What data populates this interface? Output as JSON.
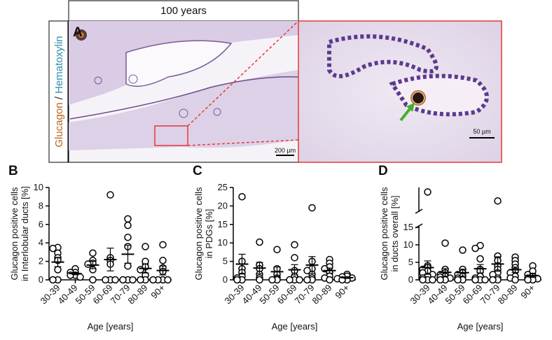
{
  "figure": {
    "title": "100 years",
    "panel": "A",
    "stain_a": "Glucagon",
    "stain_sep": " / ",
    "stain_b": "Hematoxylin",
    "scale_left": "200 µm",
    "scale_right": "50 µm"
  },
  "chart_data": [
    {
      "type": "strip",
      "panel": "B",
      "ylabel": [
        "Glucagon positive cells",
        "in Interlobular ducts [%]"
      ],
      "xlabel": "Age [years]",
      "categories": [
        "30-39",
        "40-49",
        "50-59",
        "60-69",
        "70-79",
        "80-89",
        "90+"
      ],
      "values": [
        [
          3.5,
          3.4,
          2.9,
          2.4,
          2.1,
          1.1,
          0,
          0
        ],
        [
          1.2,
          0.8,
          0.8,
          0.5,
          0.5,
          0.3
        ],
        [
          2.9,
          2.1,
          1.8,
          1.7,
          1.1,
          0
        ],
        [
          9.2,
          2.4,
          2.1,
          1.7,
          0,
          0,
          0
        ],
        [
          6.6,
          5.9,
          4.6,
          3.6,
          1.5,
          0,
          0,
          0
        ],
        [
          3.6,
          2,
          1.4,
          1.1,
          0.5,
          0,
          0
        ],
        [
          3.8,
          2.1,
          1.3,
          0.9,
          0,
          0,
          0,
          0
        ]
      ],
      "ylim": [
        0,
        10
      ],
      "yticks": [
        0,
        2,
        4,
        6,
        8,
        10
      ]
    },
    {
      "type": "strip",
      "panel": "C",
      "ylabel": [
        "Glucagon positive cells",
        "in PDGs [%]"
      ],
      "xlabel": "Age [years]",
      "categories": [
        "30-39",
        "40-49",
        "50-59",
        "60-69",
        "70-79",
        "80-89",
        "90+"
      ],
      "values": [
        [
          22.5,
          5,
          3,
          2,
          1,
          0.5,
          0,
          0
        ],
        [
          10.2,
          4,
          3,
          1.5,
          0.5,
          0
        ],
        [
          8.2,
          3,
          1.5,
          0.5,
          0,
          0
        ],
        [
          9.5,
          6,
          2.5,
          1,
          0,
          0,
          0
        ],
        [
          19.5,
          5,
          3,
          2.5,
          1.5,
          0.5,
          0,
          0
        ],
        [
          5.5,
          4.5,
          3.5,
          3,
          2,
          1,
          0.5,
          0
        ],
        [
          1.5,
          1,
          0.8,
          0.5,
          0.3,
          0,
          0
        ]
      ],
      "ylim": [
        0,
        25
      ],
      "yticks": [
        0,
        5,
        10,
        15,
        20,
        25
      ]
    },
    {
      "type": "strip",
      "panel": "D",
      "ylabel": [
        "Glucagon positive cells",
        "in ducts overall [%]"
      ],
      "xlabel": "Age [years]",
      "categories": [
        "30-39",
        "40-49",
        "50-59",
        "60-69",
        "70-79",
        "80-89",
        "90+"
      ],
      "values": [
        [
          24,
          4,
          3.5,
          3,
          2.5,
          2,
          1.5,
          1,
          0.5,
          0,
          0,
          0
        ],
        [
          10.5,
          3,
          2,
          1.5,
          1,
          0.8,
          0.5,
          0,
          0
        ],
        [
          8.5,
          3,
          2,
          1.5,
          1,
          0.5,
          0,
          0
        ],
        [
          9.8,
          9,
          6,
          3,
          2.5,
          1,
          0.5,
          0,
          0,
          0
        ],
        [
          22,
          6.8,
          5.5,
          4,
          3,
          2,
          1.5,
          0.5,
          0,
          0
        ],
        [
          6.5,
          5.5,
          4.5,
          3.5,
          2.5,
          2,
          1,
          0.5,
          0
        ],
        [
          4,
          2.5,
          1.5,
          1,
          0.5,
          0.3,
          0,
          0
        ]
      ],
      "ylim": [
        0,
        25
      ],
      "ybreak": [
        15,
        20
      ],
      "yticks": [
        0,
        5,
        10,
        15
      ]
    }
  ]
}
